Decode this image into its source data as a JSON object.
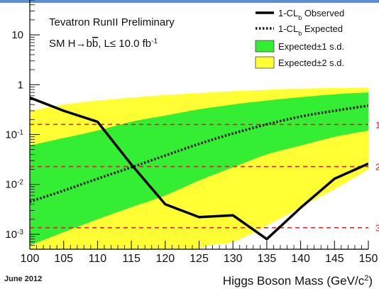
{
  "footer": {
    "date": "June 2012"
  },
  "chart_data": {
    "type": "line",
    "title": "Tevatron RunII Preliminary",
    "subtitle": "SM H→bb̄, L≤ 10.0 fb⁻¹",
    "xlabel": "Higgs Boson Mass (GeV/c²)",
    "ylabel": "",
    "xlim": [
      100,
      150
    ],
    "ylim": [
      0.0005,
      50
    ],
    "y_scale": "log",
    "x_ticks": [
      100,
      105,
      110,
      115,
      120,
      125,
      130,
      135,
      140,
      145,
      150
    ],
    "y_ticks": [
      {
        "value": 0.001,
        "base": "10",
        "exp": "-3"
      },
      {
        "value": 0.01,
        "base": "10",
        "exp": "-2"
      },
      {
        "value": 0.1,
        "base": "10",
        "exp": "-1"
      },
      {
        "value": 1,
        "base": "1",
        "exp": ""
      },
      {
        "value": 10,
        "base": "10",
        "exp": ""
      }
    ],
    "legend": {
      "position": "top-right",
      "entries": [
        {
          "key": "observed",
          "text": "1-CL",
          "sub": "b",
          "suffix": " Observed"
        },
        {
          "key": "expected",
          "text": "1-CL",
          "sub": "b",
          "suffix": " Expected"
        },
        {
          "key": "band1",
          "text": "Expected±1 s.d.",
          "sub": "",
          "suffix": ""
        },
        {
          "key": "band2",
          "text": "Expected±2 s.d.",
          "sub": "",
          "suffix": ""
        }
      ]
    },
    "sigma_lines": [
      {
        "value": 0.159,
        "label": "1"
      },
      {
        "value": 0.0228,
        "label": "2"
      },
      {
        "value": 0.00135,
        "label": "3"
      }
    ],
    "series": [
      {
        "name": "1-CLb Observed",
        "style": "solid",
        "x": [
          100,
          105,
          110,
          115,
          120,
          125,
          130,
          135,
          140,
          145,
          150
        ],
        "y": [
          0.55,
          0.3,
          0.18,
          0.025,
          0.004,
          0.0022,
          0.0024,
          0.0008,
          0.0034,
          0.013,
          0.026
        ]
      },
      {
        "name": "1-CLb Expected",
        "style": "dotted",
        "x": [
          100,
          105,
          110,
          115,
          120,
          125,
          130,
          135,
          140,
          145,
          150
        ],
        "y": [
          0.0045,
          0.0075,
          0.013,
          0.022,
          0.038,
          0.065,
          0.105,
          0.16,
          0.23,
          0.3,
          0.38
        ]
      }
    ],
    "bands": {
      "x": [
        100,
        105,
        110,
        115,
        120,
        125,
        130,
        135,
        140,
        145,
        150
      ],
      "one_sigma_low": [
        0.0006,
        0.0011,
        0.002,
        0.0035,
        0.006,
        0.012,
        0.022,
        0.04,
        0.06,
        0.09,
        0.12
      ],
      "one_sigma_high": [
        0.06,
        0.085,
        0.12,
        0.18,
        0.24,
        0.32,
        0.4,
        0.48,
        0.56,
        0.64,
        0.7
      ],
      "two_sigma_low": [
        0.0001,
        0.0001,
        0.0001,
        0.0001,
        0.0001,
        0.0005,
        0.0007,
        0.0015,
        0.0035,
        0.008,
        0.02
      ],
      "two_sigma_high": [
        0.3,
        0.4,
        0.48,
        0.55,
        0.62,
        0.68,
        0.74,
        0.79,
        0.83,
        0.86,
        0.88
      ]
    },
    "colors": {
      "one_sigma": "#33ee33",
      "two_sigma": "#ffff33",
      "observed": "#000000",
      "expected": "#1a1a1a",
      "sigma_line": "#cc2a2a"
    },
    "grid": false
  }
}
